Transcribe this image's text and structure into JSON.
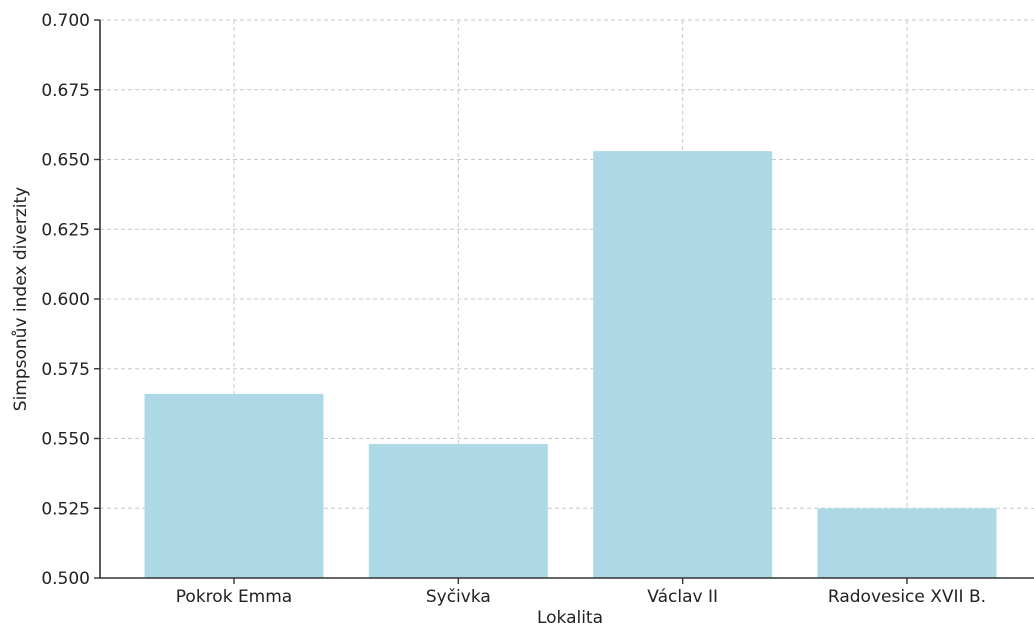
{
  "chart_data": {
    "type": "bar",
    "categories": [
      "Pokrok Emma",
      "Syčivka",
      "Václav II",
      "Radovesice XVII B."
    ],
    "values": [
      0.566,
      0.548,
      0.653,
      0.525
    ],
    "xlabel": "Lokalita",
    "ylabel": "Simpsonův index diverzity",
    "ylim": [
      0.5,
      0.7
    ],
    "yticks": [
      "0.500",
      "0.525",
      "0.550",
      "0.575",
      "0.600",
      "0.625",
      "0.650",
      "0.675",
      "0.700"
    ],
    "grid": true,
    "bar_color": "#add8e6"
  }
}
